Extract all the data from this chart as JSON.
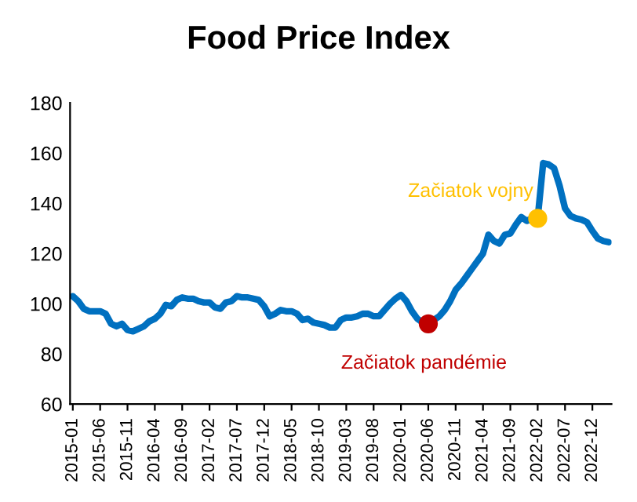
{
  "chart_data": {
    "type": "line",
    "title": "Food Price Index",
    "categories": [
      "2015-01",
      null,
      null,
      null,
      null,
      "2015-06",
      null,
      null,
      null,
      null,
      "2015-11",
      null,
      null,
      null,
      null,
      "2016-04",
      null,
      null,
      null,
      null,
      "2016-09",
      null,
      null,
      null,
      null,
      "2017-02",
      null,
      null,
      null,
      null,
      "2017-07",
      null,
      null,
      null,
      null,
      "2017-12",
      null,
      null,
      null,
      null,
      "2018-05",
      null,
      null,
      null,
      null,
      "2018-10",
      null,
      null,
      null,
      null,
      "2019-03",
      null,
      null,
      null,
      null,
      "2019-08",
      null,
      null,
      null,
      null,
      "2020-01",
      null,
      null,
      null,
      null,
      "2020-06",
      null,
      null,
      null,
      null,
      "2020-11",
      null,
      null,
      null,
      null,
      "2021-04",
      null,
      null,
      null,
      null,
      "2021-09",
      null,
      null,
      null,
      null,
      "2022-02",
      null,
      null,
      null,
      null,
      "2022-07",
      null,
      null,
      null,
      null,
      "2022-12",
      null,
      null,
      null
    ],
    "series": [
      {
        "color": "#0070c0",
        "marker": "none",
        "values": [
          103,
          101,
          98,
          97,
          97,
          97,
          96,
          92,
          91,
          92,
          89.5,
          89,
          90,
          91,
          93,
          94,
          96,
          99.5,
          99,
          101.5,
          102.5,
          102,
          102,
          101,
          100.5,
          100.5,
          98.5,
          98,
          100.5,
          101,
          103,
          102.5,
          102.5,
          102,
          101.5,
          99,
          95,
          96,
          97.5,
          97,
          97,
          96,
          93.5,
          94,
          92.5,
          92,
          91.5,
          90.5,
          90.5,
          93.5,
          94.5,
          94.5,
          95,
          96,
          96,
          95,
          95,
          97.5,
          100,
          102,
          103.5,
          101,
          97,
          94,
          92.5,
          92,
          93.5,
          95,
          97.5,
          101,
          105.5,
          108,
          111,
          114,
          117,
          120,
          127.5,
          125,
          124,
          127.5,
          128,
          131.5,
          134.5,
          133,
          134,
          134,
          156,
          155.5,
          154,
          147,
          138,
          135,
          134,
          133.5,
          132.5,
          129,
          126,
          125,
          124.5
        ]
      },
      {
        "type": "scatter",
        "name": "Začiatok pandémie",
        "color": "#c00000",
        "marker": "circle",
        "values": [
          null,
          null,
          null,
          null,
          null,
          null,
          null,
          null,
          null,
          null,
          null,
          null,
          null,
          null,
          null,
          null,
          null,
          null,
          null,
          null,
          null,
          null,
          null,
          null,
          null,
          null,
          null,
          null,
          null,
          null,
          null,
          null,
          null,
          null,
          null,
          null,
          null,
          null,
          null,
          null,
          null,
          null,
          null,
          null,
          null,
          null,
          null,
          null,
          null,
          null,
          null,
          null,
          null,
          null,
          null,
          null,
          null,
          null,
          null,
          null,
          null,
          null,
          null,
          null,
          null,
          92,
          null,
          null,
          null,
          null,
          null,
          null,
          null,
          null,
          null,
          null,
          null,
          null,
          null,
          null,
          null,
          null,
          null,
          null,
          null,
          null,
          null,
          null,
          null,
          null,
          null,
          null,
          null,
          null,
          null,
          null,
          null,
          null,
          null
        ]
      },
      {
        "type": "scatter",
        "name": "Začiatok vojny",
        "color": "#ffc000",
        "marker": "circle",
        "values": [
          null,
          null,
          null,
          null,
          null,
          null,
          null,
          null,
          null,
          null,
          null,
          null,
          null,
          null,
          null,
          null,
          null,
          null,
          null,
          null,
          null,
          null,
          null,
          null,
          null,
          null,
          null,
          null,
          null,
          null,
          null,
          null,
          null,
          null,
          null,
          null,
          null,
          null,
          null,
          null,
          null,
          null,
          null,
          null,
          null,
          null,
          null,
          null,
          null,
          null,
          null,
          null,
          null,
          null,
          null,
          null,
          null,
          null,
          null,
          null,
          null,
          null,
          null,
          null,
          null,
          null,
          null,
          null,
          null,
          null,
          null,
          null,
          null,
          null,
          null,
          null,
          null,
          null,
          null,
          null,
          null,
          null,
          null,
          null,
          null,
          134,
          null,
          null,
          null,
          null,
          null,
          null,
          null,
          null,
          null,
          null,
          null,
          null,
          null
        ]
      }
    ],
    "ylim": [
      60,
      180
    ],
    "yticks": [
      60,
      80,
      100,
      120,
      140,
      160,
      180
    ],
    "grid": false,
    "legend": false
  }
}
